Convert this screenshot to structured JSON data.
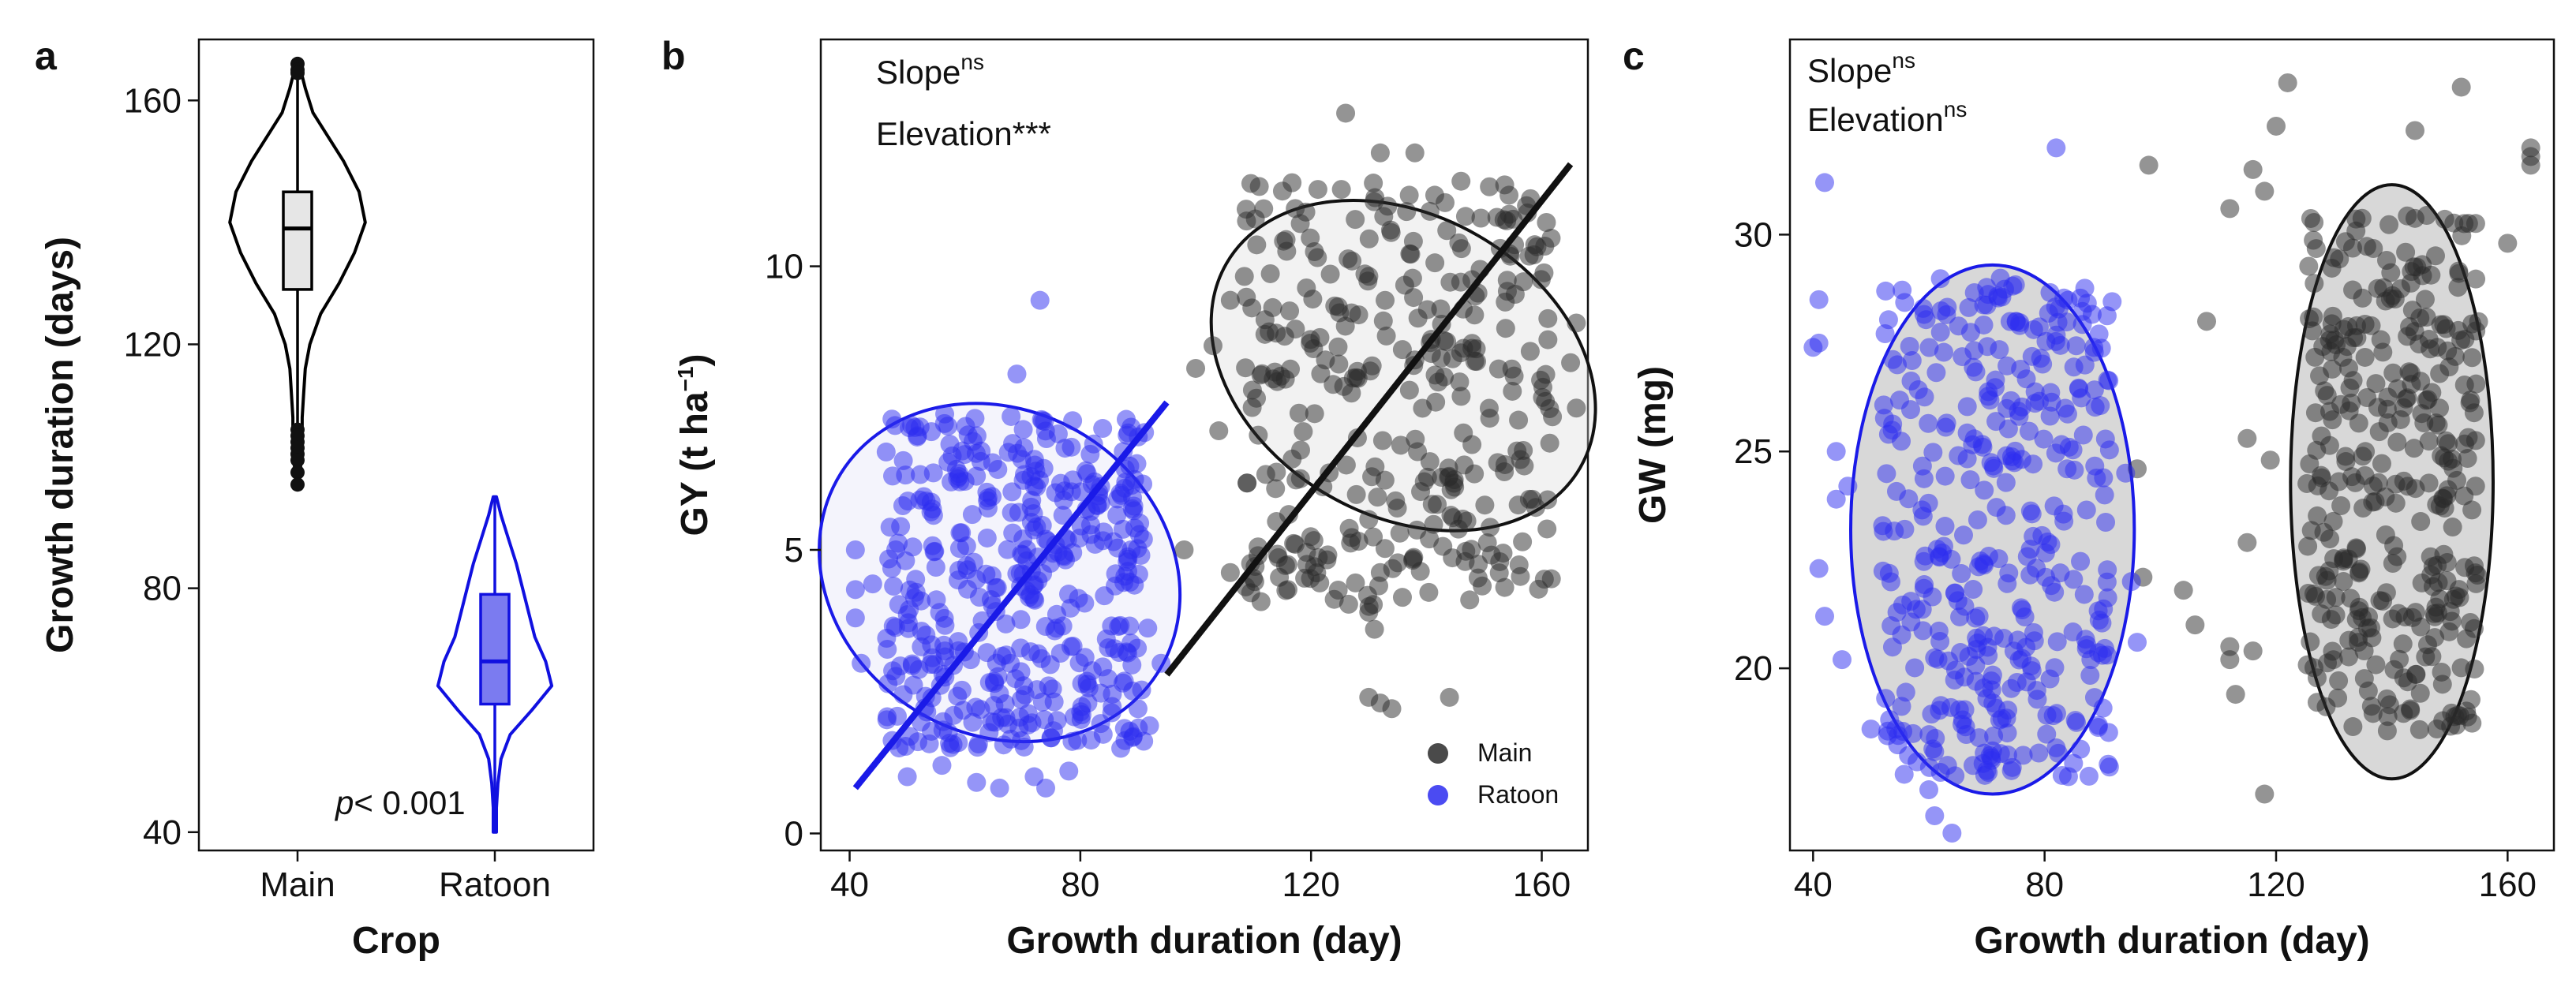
{
  "chart_data": [
    {
      "panel": "a",
      "type": "violin",
      "xlabel": "Crop",
      "ylabel": "Growth duration (days)",
      "categories": [
        "Main",
        "Ratoon"
      ],
      "colors": [
        "#000000",
        "#1010e0"
      ],
      "fills": [
        "#e6e6e6",
        "#7b7bf0"
      ],
      "yticks": [
        40,
        80,
        120,
        160
      ],
      "ylim": [
        37,
        170
      ],
      "violins": [
        {
          "name": "Main",
          "min": 97,
          "q1": 129,
          "median": 139,
          "q3": 145,
          "max": 166,
          "profile": [
            [
              97,
              1
            ],
            [
              100,
              2
            ],
            [
              104,
              3
            ],
            [
              108,
              3
            ],
            [
              112,
              4
            ],
            [
              116,
              5
            ],
            [
              120,
              8
            ],
            [
              125,
              15
            ],
            [
              130,
              27
            ],
            [
              135,
              37
            ],
            [
              140,
              44
            ],
            [
              145,
              40
            ],
            [
              150,
              30
            ],
            [
              154,
              20
            ],
            [
              158,
              10
            ],
            [
              162,
              5
            ],
            [
              166,
              1
            ]
          ]
        },
        {
          "name": "Ratoon",
          "min": 40,
          "q1": 61,
          "median": 68,
          "q3": 79,
          "max": 95,
          "profile": [
            [
              40,
              1
            ],
            [
              44,
              1
            ],
            [
              48,
              2
            ],
            [
              52,
              4
            ],
            [
              56,
              10
            ],
            [
              60,
              24
            ],
            [
              64,
              37
            ],
            [
              68,
              33
            ],
            [
              72,
              26
            ],
            [
              76,
              22
            ],
            [
              80,
              18
            ],
            [
              84,
              14
            ],
            [
              88,
              9
            ],
            [
              92,
              4
            ],
            [
              95,
              1
            ]
          ]
        }
      ],
      "annotation": {
        "italic": "p",
        "text": "< 0.001"
      }
    },
    {
      "panel": "b",
      "type": "scatter",
      "xlabel": "Growth duration (day)",
      "ylabel": "GY (t ha",
      "ylabel_sup": "−1",
      "ylabel_close": ")",
      "xticks": [
        40,
        80,
        120,
        160
      ],
      "yticks": [
        0,
        5,
        10
      ],
      "xlim": [
        35,
        168
      ],
      "ylim": [
        -0.3,
        14
      ],
      "annotations": [
        {
          "text": "Slope",
          "sup": "ns"
        },
        {
          "text": "Elevation***",
          "sup": ""
        }
      ],
      "legend": [
        "Main",
        "Ratoon"
      ],
      "series": [
        {
          "name": "Main",
          "color": "#2a2a2a",
          "ellipse": {
            "cx": 136,
            "cy": 8.25,
            "rx": 26,
            "ry": 3.6,
            "angle_deg": -60
          },
          "fit": {
            "x1": 95,
            "y1": 2.8,
            "x2": 165,
            "y2": 11.8
          },
          "cluster": {
            "xmin": 108,
            "xmax": 162,
            "ymin": 4.0,
            "ymax": 11.5
          },
          "points": [
            [
              126,
              12.7
            ],
            [
              132,
              12.0
            ],
            [
              138,
              12.0
            ],
            [
              146,
              11.5
            ],
            [
              106,
              9.4
            ],
            [
              103,
              8.6
            ],
            [
              100,
              8.2
            ],
            [
              112,
              8.8
            ],
            [
              104,
              7.1
            ],
            [
              98,
              5.0
            ],
            [
              106,
              4.6
            ],
            [
              110,
              4.5
            ],
            [
              114,
              5.5
            ],
            [
              116,
              4.3
            ],
            [
              130,
              3.9
            ],
            [
              131,
              3.6
            ],
            [
              130,
              2.4
            ],
            [
              132,
              2.3
            ],
            [
              134,
              2.2
            ],
            [
              144,
              2.4
            ],
            [
              132,
              4.6
            ],
            [
              158,
              8.5
            ],
            [
              166,
              9.0
            ],
            [
              165,
              8.3
            ],
            [
              166,
              7.5
            ]
          ]
        },
        {
          "name": "Ratoon",
          "color": "#2b2bf0",
          "ellipse": {
            "cx": 66,
            "cy": 4.6,
            "rx": 28,
            "ry": 3.3,
            "angle_deg": -58
          },
          "fit": {
            "x1": 41,
            "y1": 0.8,
            "x2": 95,
            "y2": 7.6
          },
          "cluster": {
            "xmin": 46,
            "xmax": 92,
            "ymin": 1.5,
            "ymax": 7.4
          },
          "points": [
            [
              73,
              9.4
            ],
            [
              69,
              8.1
            ],
            [
              41,
              5.0
            ],
            [
              41,
              4.3
            ],
            [
              41,
              3.8
            ],
            [
              42,
              3.0
            ],
            [
              44,
              4.4
            ],
            [
              50,
              1.0
            ],
            [
              56,
              1.2
            ],
            [
              62,
              0.9
            ],
            [
              66,
              0.8
            ],
            [
              72,
              1.0
            ],
            [
              74,
              0.8
            ],
            [
              78,
              1.1
            ],
            [
              88,
              3.2
            ],
            [
              94,
              3.0
            ],
            [
              90,
              2.2
            ],
            [
              92,
              1.9
            ],
            [
              47,
              5.4
            ],
            [
              48,
              5.0
            ]
          ]
        }
      ]
    },
    {
      "panel": "c",
      "type": "scatter",
      "xlabel": "Growth duration (day)",
      "ylabel": "GW (mg)",
      "xticks": [
        40,
        80,
        120,
        160
      ],
      "yticks": [
        20,
        25,
        30
      ],
      "xlim": [
        36,
        168
      ],
      "ylim": [
        15.8,
        34.5
      ],
      "annotations": [
        {
          "text": "Slope",
          "sup": "ns"
        },
        {
          "text": "Elevation",
          "sup": "ns"
        }
      ],
      "series": [
        {
          "name": "Main",
          "color": "#2a2a2a",
          "ellipse": {
            "cx": 140,
            "cy": 24.3,
            "rx": 17.5,
            "ry": 6.85,
            "angle_deg": 0
          },
          "cluster": {
            "xmin": 125,
            "xmax": 155,
            "ymin": 18.5,
            "ymax": 30.5
          },
          "points": [
            [
              122,
              33.5
            ],
            [
              144,
              32.4
            ],
            [
              152,
              33.4
            ],
            [
              120,
              32.5
            ],
            [
              116,
              31.5
            ],
            [
              112,
              30.6
            ],
            [
              118,
              31.0
            ],
            [
              108,
              28.0
            ],
            [
              104,
              21.8
            ],
            [
              106,
              21.0
            ],
            [
              96,
              24.6
            ],
            [
              97,
              22.1
            ],
            [
              112,
              20.2
            ],
            [
              113,
              19.4
            ],
            [
              116,
              20.4
            ],
            [
              118,
              17.1
            ],
            [
              112,
              20.5
            ],
            [
              164,
              31.6
            ],
            [
              164,
              32.0
            ],
            [
              164,
              31.8
            ],
            [
              160,
              29.8
            ],
            [
              98,
              31.6
            ],
            [
              115,
              25.3
            ],
            [
              115,
              22.9
            ],
            [
              119,
              24.8
            ]
          ]
        },
        {
          "name": "Ratoon",
          "color": "#2b2bf0",
          "ellipse": {
            "cx": 71,
            "cy": 23.2,
            "rx": 24.5,
            "ry": 6.1,
            "angle_deg": 0
          },
          "cluster": {
            "xmin": 52,
            "xmax": 92,
            "ymin": 17.5,
            "ymax": 29
          },
          "points": [
            [
              42,
              31.2
            ],
            [
              82,
              32.0
            ],
            [
              41,
              28.5
            ],
            [
              41,
              27.5
            ],
            [
              40,
              27.4
            ],
            [
              41,
              22.3
            ],
            [
              42,
              21.2
            ],
            [
              44,
              23.9
            ],
            [
              44,
              25.0
            ],
            [
              46,
              24.2
            ],
            [
              45,
              20.2
            ],
            [
              50,
              18.6
            ],
            [
              60,
              17.2
            ],
            [
              61,
              16.6
            ],
            [
              62,
              17.6
            ],
            [
              64,
              16.2
            ],
            [
              88,
              20.2
            ],
            [
              90,
              20.3
            ],
            [
              96,
              20.6
            ],
            [
              95,
              22.0
            ],
            [
              94,
              24.5
            ]
          ]
        }
      ]
    }
  ]
}
